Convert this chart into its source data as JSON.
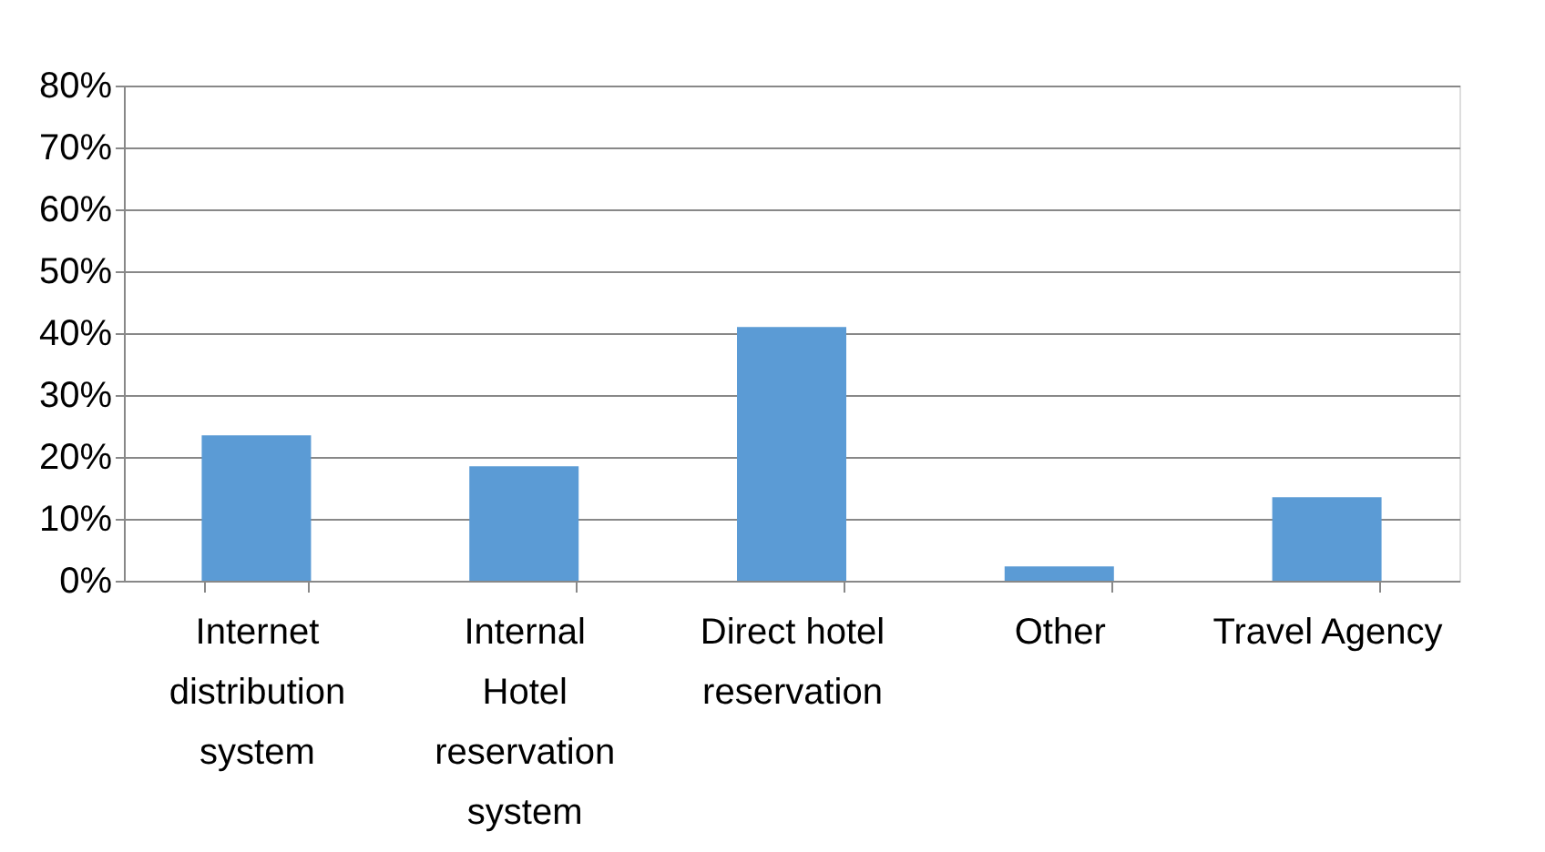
{
  "chart_data": {
    "type": "bar",
    "categories": [
      "Internet distribution system",
      "Internal Hotel reservation system",
      "Direct hotel reservation",
      "Other",
      "Travel Agency"
    ],
    "values": [
      23.5,
      18.5,
      41,
      2.3,
      13.5
    ],
    "color": "#5b9bd5",
    "ylim": [
      0,
      80
    ],
    "yticks": [
      {
        "value": 0,
        "label": "0%"
      },
      {
        "value": 10,
        "label": "10%"
      },
      {
        "value": 20,
        "label": "20%"
      },
      {
        "value": 30,
        "label": "30%"
      },
      {
        "value": 40,
        "label": "40%"
      },
      {
        "value": 50,
        "label": "50%"
      },
      {
        "value": 60,
        "label": "60%"
      },
      {
        "value": 70,
        "label": "70%"
      },
      {
        "value": 80,
        "label": "80%"
      }
    ],
    "grid": "y"
  }
}
